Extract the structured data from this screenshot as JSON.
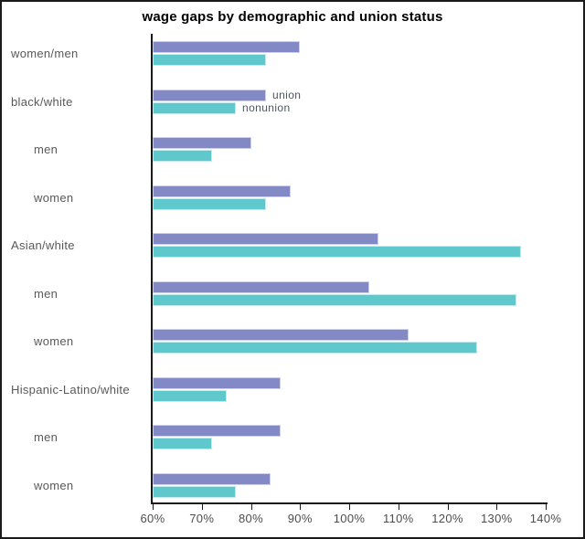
{
  "window": {
    "background": "#ffffff",
    "frame_border_color": "#1a1a1a"
  },
  "chart_data": {
    "type": "bar",
    "orientation": "horizontal",
    "title": "wage gaps by demographic and union status",
    "categories": [
      {
        "label": "women/men",
        "indent": false
      },
      {
        "label": "black/white",
        "indent": false
      },
      {
        "label": "men",
        "indent": true
      },
      {
        "label": "women",
        "indent": true
      },
      {
        "label": "Asian/white",
        "indent": false
      },
      {
        "label": "men",
        "indent": true
      },
      {
        "label": "women",
        "indent": true
      },
      {
        "label": "Hispanic-Latino/white",
        "indent": false
      },
      {
        "label": "men",
        "indent": true
      },
      {
        "label": "women",
        "indent": true
      }
    ],
    "series": [
      {
        "name": "union",
        "color": "#8289c4",
        "edge_color": "#ccd0ea",
        "values": [
          90,
          83,
          80,
          88,
          106,
          104,
          112,
          86,
          86,
          84
        ]
      },
      {
        "name": "nonunion",
        "color": "#5fc8cd",
        "edge_color": "#c2ebed",
        "values": [
          83,
          77,
          72,
          83,
          135,
          134,
          126,
          75,
          72,
          77
        ]
      }
    ],
    "x_axis": {
      "min": 60,
      "max": 140,
      "tick_step": 10,
      "unit": "%",
      "tick_labels": [
        "60%",
        "70%",
        "80%",
        "90%",
        "100%",
        "110%",
        "120%",
        "130%",
        "140%"
      ]
    },
    "legend": {
      "position": "inside-plot-right-of-black-white-bars",
      "entries": [
        "union",
        "nonunion"
      ]
    },
    "grid": "off",
    "value_precision": "estimated to nearest 1% from axis"
  }
}
